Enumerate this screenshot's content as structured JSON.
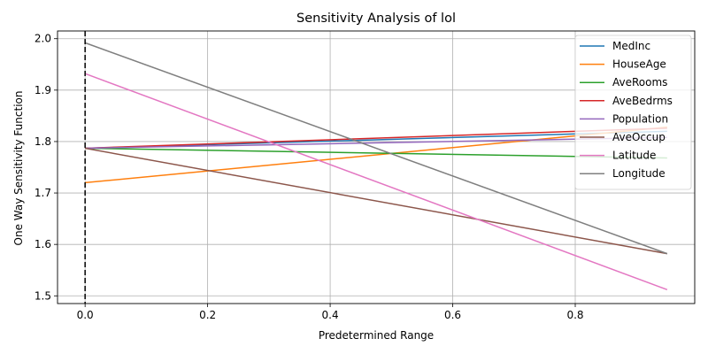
{
  "chart_data": {
    "type": "line",
    "title": "Sensitivity Analysis of lol",
    "xlabel": "Predetermined Range",
    "ylabel": "One Way Sensitivity Function",
    "xlim": [
      -0.045,
      0.995
    ],
    "ylim": [
      1.485,
      2.015
    ],
    "xticks": [
      0.0,
      0.2,
      0.4,
      0.6,
      0.8
    ],
    "xtick_labels": [
      "0.0",
      "0.2",
      "0.4",
      "0.6",
      "0.8"
    ],
    "yticks": [
      1.5,
      1.6,
      1.7,
      1.8,
      1.9,
      2.0
    ],
    "ytick_labels": [
      "1.5",
      "1.6",
      "1.7",
      "1.8",
      "1.9",
      "2.0"
    ],
    "grid": true,
    "legend_position": "upper right",
    "reference_line": {
      "x": 0.0,
      "style": "dashed",
      "color": "#000000"
    },
    "series": [
      {
        "name": "MedInc",
        "color": "#1f77b4",
        "x": [
          0.0,
          0.95
        ],
        "y": [
          1.787,
          1.82
        ]
      },
      {
        "name": "HouseAge",
        "color": "#ff7f0e",
        "x": [
          0.0,
          0.95
        ],
        "y": [
          1.72,
          1.828
        ]
      },
      {
        "name": "AveRooms",
        "color": "#2ca02c",
        "x": [
          0.0,
          0.95
        ],
        "y": [
          1.787,
          1.768
        ]
      },
      {
        "name": "AveBedrms",
        "color": "#d62728",
        "x": [
          0.0,
          0.95
        ],
        "y": [
          1.787,
          1.826
        ]
      },
      {
        "name": "Population",
        "color": "#9467bd",
        "x": [
          0.0,
          0.95
        ],
        "y": [
          1.787,
          1.808
        ]
      },
      {
        "name": "AveOccup",
        "color": "#8c564b",
        "x": [
          0.0,
          0.95
        ],
        "y": [
          1.787,
          1.582
        ]
      },
      {
        "name": "Latitude",
        "color": "#e377c2",
        "x": [
          0.0,
          0.95
        ],
        "y": [
          1.932,
          1.512
        ]
      },
      {
        "name": "Longitude",
        "color": "#7f7f7f",
        "x": [
          0.0,
          0.95
        ],
        "y": [
          1.992,
          1.582
        ]
      }
    ]
  }
}
